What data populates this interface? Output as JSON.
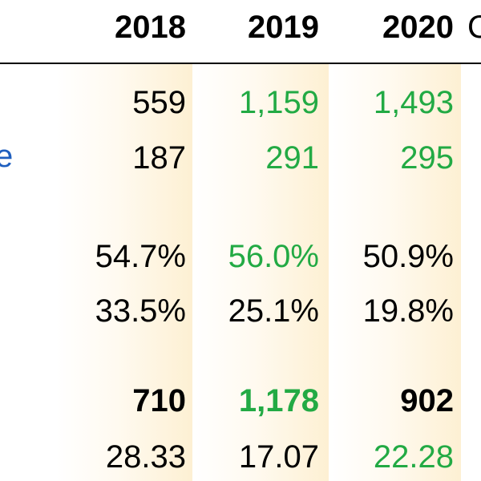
{
  "header": {
    "years": [
      "2018",
      "2019",
      "2020"
    ],
    "clipped_right": "C"
  },
  "left_clip_text": "e",
  "colors": {
    "positive": "#22aa44",
    "default": "#000000",
    "label_blue": "#1f5fbf",
    "column_tint": "#fdf0d3"
  },
  "rows": [
    {
      "cells": [
        {
          "value": "559",
          "green": false
        },
        {
          "value": "1,159",
          "green": true
        },
        {
          "value": "1,493",
          "green": true
        }
      ]
    },
    {
      "cells": [
        {
          "value": "187",
          "green": false
        },
        {
          "value": "291",
          "green": true
        },
        {
          "value": "295",
          "green": true
        }
      ]
    },
    {
      "cells": [
        {
          "value": "54.7%",
          "green": false
        },
        {
          "value": "56.0%",
          "green": true
        },
        {
          "value": "50.9%",
          "green": false
        }
      ]
    },
    {
      "cells": [
        {
          "value": "33.5%",
          "green": false
        },
        {
          "value": "25.1%",
          "green": false
        },
        {
          "value": "19.8%",
          "green": false
        }
      ]
    },
    {
      "cells": [
        {
          "value": "710",
          "green": false,
          "bold": true
        },
        {
          "value": "1,178",
          "green": true,
          "bold": true
        },
        {
          "value": "902",
          "green": false,
          "bold": true
        }
      ]
    },
    {
      "cells": [
        {
          "value": "28.33",
          "green": false
        },
        {
          "value": "17.07",
          "green": false
        },
        {
          "value": "22.28",
          "green": true
        }
      ]
    }
  ]
}
